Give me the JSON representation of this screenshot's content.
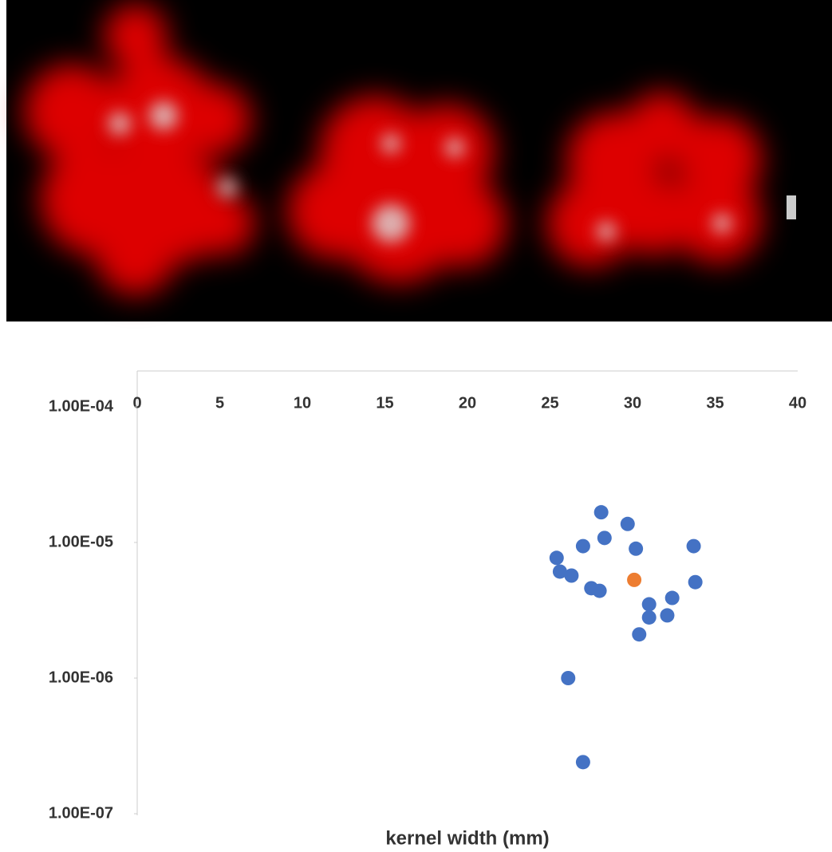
{
  "chart_data": {
    "type": "scatter",
    "x_label": "kernel width (mm)",
    "xlim": [
      0,
      40
    ],
    "xticks": [
      0,
      5,
      10,
      15,
      20,
      25,
      30,
      35,
      40
    ],
    "ylim": [
      1e-07,
      0.0001
    ],
    "log_y": true,
    "yticks": [
      {
        "value": 0.0001,
        "label": "1.00E-04"
      },
      {
        "value": 1e-05,
        "label": "1.00E-05"
      },
      {
        "value": 1e-06,
        "label": "1.00E-06"
      },
      {
        "value": 1e-07,
        "label": "1.00E-07"
      }
    ],
    "series": [
      {
        "color": "#4472c4",
        "x": [
          28.1,
          29.7,
          28.3,
          27.0,
          30.2,
          33.7,
          25.4,
          25.6,
          26.3,
          33.8,
          27.5,
          28.0,
          32.4,
          31.0,
          31.0,
          32.1,
          30.4,
          26.1,
          27.0
        ],
        "values": [
          1.67e-05,
          1.37e-05,
          1.08e-05,
          9.4e-06,
          9e-06,
          9.4e-06,
          7.7e-06,
          6.1e-06,
          5.7e-06,
          5.1e-06,
          4.6e-06,
          4.4e-06,
          3.9e-06,
          3.5e-06,
          2.8e-06,
          2.9e-06,
          2.1e-06,
          1e-06,
          2.4e-07
        ]
      },
      {
        "color": "#ed7d31",
        "x": [
          30.1
        ],
        "values": [
          5.3e-06
        ]
      }
    ]
  }
}
